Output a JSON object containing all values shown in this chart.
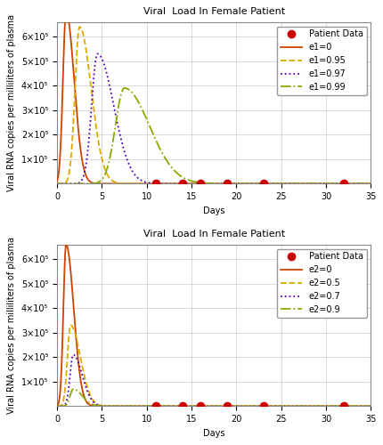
{
  "title": "Viral  Load In Female Patient",
  "xlabel": "Days",
  "ylabel": "Viral RNA copies per milliliters of plasma",
  "xlim": [
    0,
    35
  ],
  "patient_days": [
    11,
    14,
    16,
    19,
    23,
    32
  ],
  "top": {
    "curves": [
      {
        "label": "e1=0",
        "color": "#CC4400",
        "ls": "solid",
        "peak": 700000,
        "peak_day": 1.0,
        "rise": 0.35,
        "decay": 0.9
      },
      {
        "label": "e1=0.95",
        "color": "#DDAA00",
        "ls": "dashed",
        "peak": 640000,
        "peak_day": 2.5,
        "rise": 0.5,
        "decay": 1.3
      },
      {
        "label": "e1=0.97",
        "color": "#5500BB",
        "ls": "dotted",
        "peak": 530000,
        "peak_day": 4.5,
        "rise": 0.65,
        "decay": 1.8
      },
      {
        "label": "e1=0.99",
        "color": "#88AA00",
        "ls": "dashdot",
        "peak": 390000,
        "peak_day": 7.5,
        "rise": 1.0,
        "decay": 2.8
      }
    ]
  },
  "bottom": {
    "curves": [
      {
        "label": "e2=0",
        "color": "#CC4400",
        "ls": "solid",
        "peak": 660000,
        "peak_day": 1.0,
        "rise": 0.3,
        "decay": 0.85
      },
      {
        "label": "e2=0.5",
        "color": "#DDAA00",
        "ls": "dashed",
        "peak": 330000,
        "peak_day": 1.5,
        "rise": 0.35,
        "decay": 1.1
      },
      {
        "label": "e2=0.7",
        "color": "#5500BB",
        "ls": "dotted",
        "peak": 210000,
        "peak_day": 1.8,
        "rise": 0.35,
        "decay": 1.0
      },
      {
        "label": "e2=0.9",
        "color": "#88AA00",
        "ls": "dashdot",
        "peak": 70000,
        "peak_day": 1.8,
        "rise": 0.35,
        "decay": 1.0
      }
    ]
  },
  "ylim": [
    0,
    660000
  ],
  "yticks": [
    100000,
    200000,
    300000,
    400000,
    500000,
    600000
  ],
  "ytick_labels": [
    "1×10⁵",
    "2×10⁵",
    "3×10⁵",
    "4×10⁵",
    "5×10⁵",
    "6×10⁵"
  ],
  "xticks": [
    0,
    5,
    10,
    15,
    20,
    25,
    30,
    35
  ],
  "patient_y": 2000,
  "patient_color": "#CC0000",
  "patient_size": 6,
  "grid_color": "#CCCCCC",
  "line_width": 1.3,
  "bg_color": "#FFFFFF",
  "fig_bg": "#FFFFFF",
  "title_fontsize": 8,
  "label_fontsize": 7,
  "tick_fontsize": 7,
  "legend_fontsize": 7
}
